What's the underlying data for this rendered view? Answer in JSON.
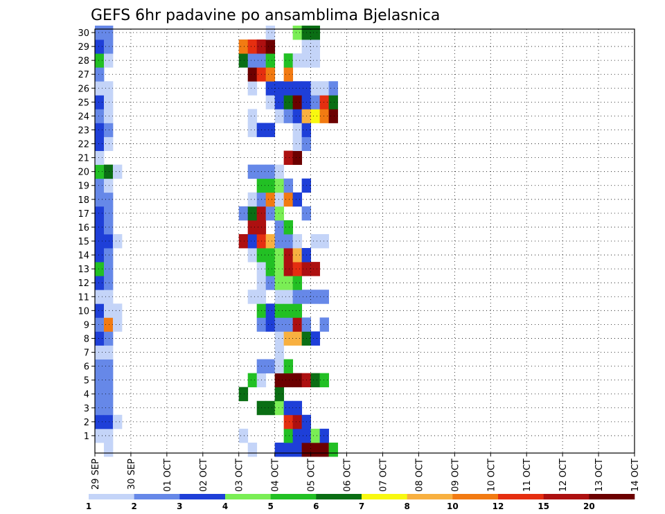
{
  "chart_data": {
    "type": "heatmap",
    "title": "GEFS 6hr padavine po ansamblima Bjelasnica",
    "xlabel": "",
    "ylabel": "",
    "x_ticks": [
      "29 SEP",
      "30 SEP",
      "01 OCT",
      "02 OCT",
      "03 OCT",
      "04 OCT",
      "05 OCT",
      "06 OCT",
      "07 OCT",
      "08 OCT",
      "09 OCT",
      "10 OCT",
      "11 OCT",
      "12 OCT",
      "13 OCT",
      "14 OCT"
    ],
    "y_ticks": [
      1,
      2,
      3,
      4,
      5,
      6,
      7,
      8,
      9,
      10,
      11,
      12,
      13,
      14,
      15,
      16,
      17,
      18,
      19,
      20,
      21,
      22,
      23,
      24,
      25,
      26,
      27,
      28,
      29,
      30
    ],
    "ylim": [
      0,
      30
    ],
    "xlim_days": [
      0,
      15
    ],
    "step_hours": 6,
    "grid": true,
    "levels": [
      1,
      2,
      3,
      4,
      5,
      6,
      7,
      8,
      10,
      12,
      15,
      20
    ],
    "legend_labels": [
      "1",
      "2",
      "3",
      "4",
      "5",
      "6",
      "7",
      "8",
      "10",
      "12",
      "15",
      "20"
    ],
    "colors": [
      "#c4d4f8",
      "#6688e8",
      "#1e3fd8",
      "#7aee55",
      "#22c024",
      "#0a6e14",
      "#f8f810",
      "#f8b040",
      "#f27a12",
      "#e52e10",
      "#ad1010",
      "#6c0000"
    ],
    "cells": [
      [
        0,
        1,
        1
      ],
      [
        0,
        2,
        3
      ],
      [
        0,
        3,
        2
      ],
      [
        0,
        4,
        2
      ],
      [
        0,
        5,
        2
      ],
      [
        0,
        6,
        2
      ],
      [
        0,
        7,
        1
      ],
      [
        0,
        8,
        3
      ],
      [
        0,
        9,
        2
      ],
      [
        0,
        10,
        3
      ],
      [
        0,
        11,
        1
      ],
      [
        0,
        12,
        3
      ],
      [
        0,
        13,
        5
      ],
      [
        0,
        14,
        3
      ],
      [
        0,
        15,
        3
      ],
      [
        0,
        16,
        3
      ],
      [
        0,
        17,
        3
      ],
      [
        0,
        18,
        2
      ],
      [
        0,
        19,
        2
      ],
      [
        0,
        20,
        5
      ],
      [
        0,
        21,
        1
      ],
      [
        0,
        22,
        3
      ],
      [
        0,
        23,
        3
      ],
      [
        0,
        24,
        2
      ],
      [
        0,
        25,
        3
      ],
      [
        0,
        26,
        1
      ],
      [
        0,
        27,
        2
      ],
      [
        0,
        28,
        5
      ],
      [
        0,
        29,
        3
      ],
      [
        0,
        30,
        2
      ],
      [
        1,
        0,
        1
      ],
      [
        1,
        1,
        1
      ],
      [
        1,
        2,
        3
      ],
      [
        1,
        3,
        2
      ],
      [
        1,
        4,
        2
      ],
      [
        1,
        5,
        2
      ],
      [
        1,
        6,
        2
      ],
      [
        1,
        7,
        1
      ],
      [
        1,
        8,
        2
      ],
      [
        1,
        9,
        9
      ],
      [
        1,
        10,
        1
      ],
      [
        1,
        11,
        1
      ],
      [
        1,
        12,
        2
      ],
      [
        1,
        13,
        2
      ],
      [
        1,
        14,
        2
      ],
      [
        1,
        15,
        3
      ],
      [
        1,
        16,
        2
      ],
      [
        1,
        17,
        2
      ],
      [
        1,
        18,
        2
      ],
      [
        1,
        19,
        1
      ],
      [
        1,
        20,
        6
      ],
      [
        1,
        22,
        1
      ],
      [
        1,
        23,
        2
      ],
      [
        1,
        24,
        1
      ],
      [
        1,
        25,
        1
      ],
      [
        1,
        26,
        1
      ],
      [
        1,
        28,
        1
      ],
      [
        1,
        29,
        2
      ],
      [
        1,
        30,
        2
      ],
      [
        2,
        2,
        1
      ],
      [
        2,
        9,
        1
      ],
      [
        2,
        10,
        1
      ],
      [
        2,
        15,
        1
      ],
      [
        2,
        20,
        1
      ],
      [
        16,
        4,
        6
      ],
      [
        16,
        1,
        1
      ],
      [
        16,
        15,
        11
      ],
      [
        16,
        17,
        2
      ],
      [
        16,
        28,
        6
      ],
      [
        16,
        29,
        9
      ],
      [
        17,
        0,
        1
      ],
      [
        17,
        5,
        5
      ],
      [
        17,
        11,
        1
      ],
      [
        17,
        14,
        1
      ],
      [
        17,
        15,
        3
      ],
      [
        17,
        16,
        11
      ],
      [
        17,
        17,
        6
      ],
      [
        17,
        18,
        1
      ],
      [
        17,
        20,
        2
      ],
      [
        17,
        23,
        1
      ],
      [
        17,
        24,
        1
      ],
      [
        17,
        26,
        1
      ],
      [
        17,
        27,
        12
      ],
      [
        17,
        28,
        2
      ],
      [
        17,
        29,
        10
      ],
      [
        18,
        3,
        6
      ],
      [
        18,
        5,
        1
      ],
      [
        18,
        6,
        2
      ],
      [
        18,
        9,
        2
      ],
      [
        18,
        10,
        5
      ],
      [
        18,
        11,
        1
      ],
      [
        18,
        12,
        1
      ],
      [
        18,
        13,
        1
      ],
      [
        18,
        14,
        5
      ],
      [
        18,
        15,
        10
      ],
      [
        18,
        16,
        11
      ],
      [
        18,
        17,
        11
      ],
      [
        18,
        18,
        2
      ],
      [
        18,
        19,
        5
      ],
      [
        18,
        20,
        2
      ],
      [
        18,
        23,
        3
      ],
      [
        18,
        27,
        10
      ],
      [
        18,
        28,
        2
      ],
      [
        18,
        29,
        11
      ],
      [
        19,
        3,
        6
      ],
      [
        19,
        6,
        2
      ],
      [
        19,
        9,
        3
      ],
      [
        19,
        10,
        3
      ],
      [
        19,
        12,
        2
      ],
      [
        19,
        13,
        5
      ],
      [
        19,
        14,
        5
      ],
      [
        19,
        15,
        8
      ],
      [
        19,
        17,
        2
      ],
      [
        19,
        18,
        9
      ],
      [
        19,
        19,
        5
      ],
      [
        19,
        20,
        2
      ],
      [
        19,
        23,
        3
      ],
      [
        19,
        25,
        1
      ],
      [
        19,
        26,
        3
      ],
      [
        19,
        27,
        9
      ],
      [
        19,
        28,
        5
      ],
      [
        19,
        29,
        12
      ],
      [
        19,
        30,
        1
      ],
      [
        20,
        0,
        3
      ],
      [
        20,
        3,
        4
      ],
      [
        20,
        4,
        6
      ],
      [
        20,
        5,
        12
      ],
      [
        20,
        6,
        1
      ],
      [
        20,
        7,
        1
      ],
      [
        20,
        8,
        1
      ],
      [
        20,
        9,
        2
      ],
      [
        20,
        10,
        5
      ],
      [
        20,
        11,
        1
      ],
      [
        20,
        12,
        4
      ],
      [
        20,
        13,
        4
      ],
      [
        20,
        14,
        4
      ],
      [
        20,
        15,
        2
      ],
      [
        20,
        16,
        2
      ],
      [
        20,
        17,
        4
      ],
      [
        20,
        18,
        1
      ],
      [
        20,
        19,
        4
      ],
      [
        20,
        20,
        1
      ],
      [
        20,
        24,
        1
      ],
      [
        20,
        25,
        3
      ],
      [
        20,
        26,
        3
      ],
      [
        21,
        0,
        3
      ],
      [
        21,
        1,
        5
      ],
      [
        21,
        2,
        10
      ],
      [
        21,
        3,
        3
      ],
      [
        21,
        5,
        12
      ],
      [
        21,
        6,
        5
      ],
      [
        21,
        8,
        8
      ],
      [
        21,
        9,
        2
      ],
      [
        21,
        10,
        5
      ],
      [
        21,
        11,
        1
      ],
      [
        21,
        12,
        4
      ],
      [
        21,
        13,
        11
      ],
      [
        21,
        14,
        11
      ],
      [
        21,
        15,
        2
      ],
      [
        21,
        16,
        5
      ],
      [
        21,
        18,
        9
      ],
      [
        21,
        19,
        2
      ],
      [
        21,
        21,
        11
      ],
      [
        21,
        24,
        2
      ],
      [
        21,
        25,
        6
      ],
      [
        21,
        26,
        3
      ],
      [
        21,
        27,
        9
      ],
      [
        21,
        28,
        5
      ],
      [
        22,
        0,
        3
      ],
      [
        22,
        1,
        3
      ],
      [
        22,
        2,
        11
      ],
      [
        22,
        3,
        3
      ],
      [
        22,
        5,
        12
      ],
      [
        22,
        8,
        8
      ],
      [
        22,
        9,
        11
      ],
      [
        22,
        10,
        5
      ],
      [
        22,
        11,
        2
      ],
      [
        22,
        12,
        5
      ],
      [
        22,
        13,
        10
      ],
      [
        22,
        14,
        8
      ],
      [
        22,
        15,
        1
      ],
      [
        22,
        18,
        3
      ],
      [
        22,
        21,
        12
      ],
      [
        22,
        22,
        1
      ],
      [
        22,
        23,
        1
      ],
      [
        22,
        24,
        3
      ],
      [
        22,
        25,
        12
      ],
      [
        22,
        26,
        3
      ],
      [
        22,
        28,
        1
      ],
      [
        22,
        30,
        4
      ],
      [
        23,
        0,
        12
      ],
      [
        23,
        1,
        3
      ],
      [
        23,
        2,
        3
      ],
      [
        23,
        5,
        11
      ],
      [
        23,
        8,
        6
      ],
      [
        23,
        9,
        2
      ],
      [
        23,
        11,
        2
      ],
      [
        23,
        13,
        11
      ],
      [
        23,
        14,
        3
      ],
      [
        23,
        17,
        2
      ],
      [
        23,
        19,
        3
      ],
      [
        23,
        22,
        2
      ],
      [
        23,
        23,
        3
      ],
      [
        23,
        24,
        8
      ],
      [
        23,
        25,
        3
      ],
      [
        23,
        26,
        3
      ],
      [
        23,
        28,
        1
      ],
      [
        23,
        29,
        1
      ],
      [
        23,
        30,
        6
      ],
      [
        24,
        0,
        12
      ],
      [
        24,
        1,
        4
      ],
      [
        24,
        5,
        6
      ],
      [
        24,
        8,
        3
      ],
      [
        24,
        11,
        2
      ],
      [
        24,
        13,
        11
      ],
      [
        24,
        15,
        1
      ],
      [
        24,
        24,
        7
      ],
      [
        24,
        25,
        2
      ],
      [
        24,
        26,
        1
      ],
      [
        24,
        28,
        1
      ],
      [
        24,
        29,
        1
      ],
      [
        24,
        30,
        6
      ],
      [
        25,
        0,
        12
      ],
      [
        25,
        1,
        3
      ],
      [
        25,
        5,
        5
      ],
      [
        25,
        9,
        2
      ],
      [
        25,
        11,
        2
      ],
      [
        25,
        15,
        1
      ],
      [
        25,
        24,
        9
      ],
      [
        25,
        25,
        10
      ],
      [
        25,
        26,
        1
      ],
      [
        26,
        0,
        5
      ],
      [
        26,
        24,
        12
      ],
      [
        26,
        25,
        6
      ],
      [
        26,
        26,
        2
      ]
    ]
  },
  "legend": {
    "labels": [
      "1",
      "2",
      "3",
      "4",
      "5",
      "6",
      "7",
      "8",
      "10",
      "12",
      "15",
      "20"
    ]
  }
}
